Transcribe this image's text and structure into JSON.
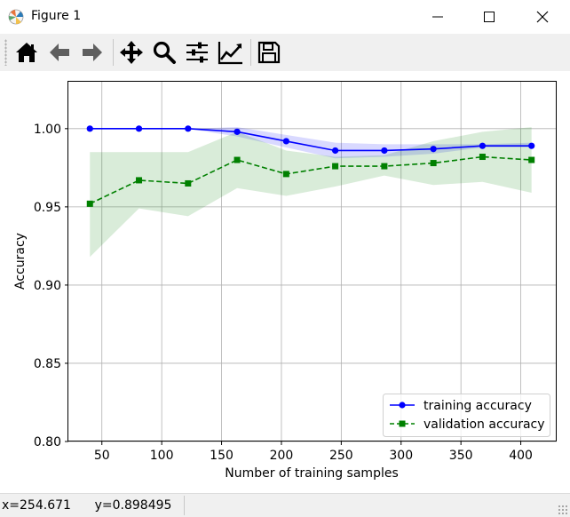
{
  "window": {
    "title": "Figure 1",
    "controls": [
      "minimize",
      "maximize",
      "close"
    ]
  },
  "toolbar": {
    "buttons": [
      {
        "name": "home",
        "icon": "home-icon"
      },
      {
        "name": "back",
        "icon": "arrow-left-icon"
      },
      {
        "name": "forward",
        "icon": "arrow-right-icon"
      },
      {
        "name": "pan",
        "icon": "move-icon"
      },
      {
        "name": "zoom",
        "icon": "magnifier-icon"
      },
      {
        "name": "subplots",
        "icon": "sliders-icon"
      },
      {
        "name": "edit-axes",
        "icon": "line-chart-icon"
      },
      {
        "name": "save",
        "icon": "floppy-disk-icon"
      }
    ]
  },
  "status": {
    "text": "x=254.671      y=0.898495"
  },
  "chart_data": {
    "type": "line",
    "xlabel": "Number of training samples",
    "ylabel": "Accuracy",
    "xlim": [
      22,
      430
    ],
    "ylim": [
      0.8,
      1.03
    ],
    "xticks": [
      50,
      100,
      150,
      200,
      250,
      300,
      350,
      400
    ],
    "yticks": [
      0.8,
      0.85,
      0.9,
      0.95,
      1.0
    ],
    "xtick_labels": [
      "50",
      "100",
      "150",
      "200",
      "250",
      "300",
      "350",
      "400"
    ],
    "ytick_labels": [
      "0.80",
      "0.85",
      "0.90",
      "0.95",
      "1.00"
    ],
    "grid": true,
    "legend_position": "lower-right",
    "x": [
      40,
      81,
      122,
      163,
      204,
      245,
      286,
      327,
      368,
      409
    ],
    "series": [
      {
        "name": "training accuracy",
        "color": "#0000ff",
        "marker": "circle",
        "linestyle": "solid",
        "values": [
          1.0,
          1.0,
          1.0,
          0.998,
          0.992,
          0.986,
          0.986,
          0.987,
          0.989,
          0.989
        ],
        "band_upper": [
          1.0,
          1.0,
          1.0,
          1.001,
          0.996,
          0.991,
          0.99,
          0.99,
          0.99,
          0.991
        ],
        "band_lower": [
          1.0,
          1.0,
          1.0,
          0.995,
          0.988,
          0.981,
          0.982,
          0.984,
          0.988,
          0.988
        ],
        "band_color": "#0000ff"
      },
      {
        "name": "validation accuracy",
        "color": "#008000",
        "marker": "square",
        "linestyle": "dashed",
        "values": [
          0.952,
          0.967,
          0.965,
          0.98,
          0.971,
          0.976,
          0.976,
          0.978,
          0.982,
          0.98
        ],
        "band_upper": [
          0.985,
          0.985,
          0.985,
          0.998,
          0.986,
          0.982,
          0.983,
          0.992,
          0.998,
          1.001
        ],
        "band_lower": [
          0.918,
          0.949,
          0.944,
          0.962,
          0.957,
          0.963,
          0.97,
          0.964,
          0.966,
          0.959
        ],
        "band_color": "#008000"
      }
    ]
  }
}
